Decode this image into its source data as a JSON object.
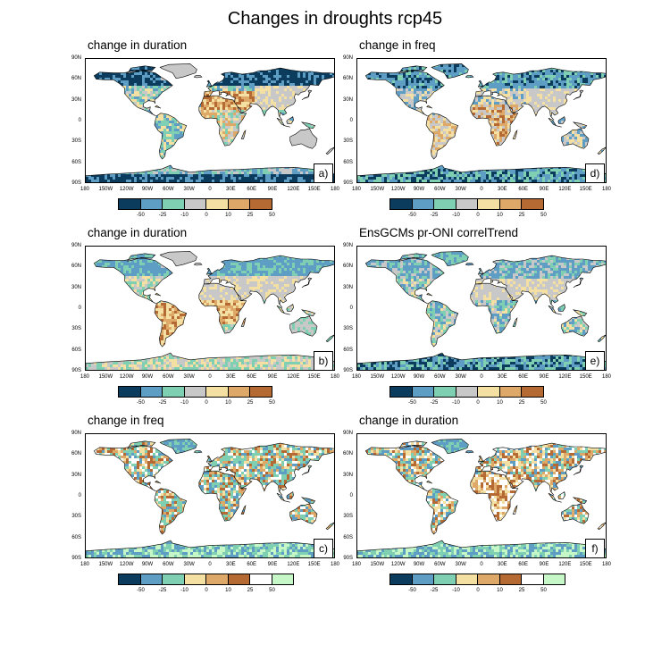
{
  "title": "Changes in droughts rcp45",
  "lat_labels": [
    "90N",
    "60N",
    "30N",
    "0",
    "30S",
    "60S",
    "90S"
  ],
  "lon_labels": [
    "180",
    "150W",
    "120W",
    "90W",
    "60W",
    "30W",
    "0",
    "30E",
    "60E",
    "90E",
    "120E",
    "150E",
    "180"
  ],
  "palette_div": [
    "#0b3c5d",
    "#5e9ec4",
    "#7fd0b2",
    "#c8c8c8",
    "#f3e0a2",
    "#dda868",
    "#b66a33"
  ],
  "palette_fq": [
    "#0b3c5d",
    "#5e9ec4",
    "#7fd0b2",
    "#f3e0a2",
    "#dda868",
    "#b66a33",
    "#ffffff",
    "#c6f7c6"
  ],
  "panels": [
    {
      "id": "a",
      "title": "change in duration",
      "tag": "a)",
      "labelbar": [
        "-50",
        "-25",
        "-10",
        "0",
        "10",
        "25",
        "50"
      ],
      "scheme": "dur"
    },
    {
      "id": "d",
      "title": "change in freq",
      "tag": "d)",
      "labelbar": [
        "-50",
        "-25",
        "-10",
        "0",
        "10",
        "25",
        "50"
      ],
      "scheme": "freq"
    },
    {
      "id": "b",
      "title": "change in duration",
      "tag": "b)",
      "labelbar": [
        "-50",
        "-25",
        "-10",
        "0",
        "10",
        "25",
        "50"
      ],
      "scheme": "dur2"
    },
    {
      "id": "e",
      "title": "EnsGCMs pr-ONI correlTrend",
      "tag": "e)",
      "labelbar": [
        "-50",
        "-25",
        "-10",
        "0",
        "10",
        "25",
        "50"
      ],
      "scheme": "corr"
    },
    {
      "id": "c",
      "title": "change in freq",
      "tag": "c)",
      "labelbar": [
        "-50",
        "-25",
        "-10",
        "0",
        "10",
        "25",
        "50"
      ],
      "scheme": "fq"
    },
    {
      "id": "f",
      "title": "change in duration",
      "tag": "f)",
      "labelbar": [
        "-50",
        "-25",
        "-10",
        "0",
        "10",
        "25",
        "50"
      ],
      "scheme": "fq2"
    }
  ]
}
